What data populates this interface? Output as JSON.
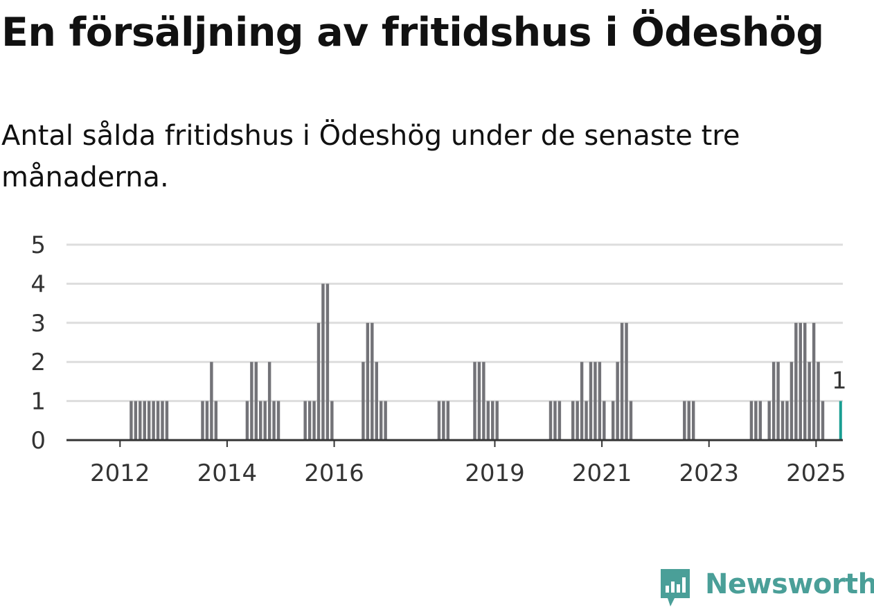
{
  "header": {
    "title": "En försäljning av fritidshus i Ödeshög",
    "subtitle": "Antal sålda fritidshus i Ödeshög under de senaste tre månaderna."
  },
  "brand": {
    "name": "Newsworthy",
    "icon": "newsworthy-logo-icon",
    "color": "#4a9f98"
  },
  "colors": {
    "bar": "#737378",
    "highlight": "#1a9e92",
    "grid": "#dddddd",
    "axis": "#333333"
  },
  "chart_data": {
    "type": "bar",
    "title": "",
    "xlabel": "",
    "ylabel": "",
    "ylim": [
      0,
      5
    ],
    "yticks": [
      0,
      1,
      2,
      3,
      4,
      5
    ],
    "xticks": [
      2012,
      2014,
      2016,
      2019,
      2021,
      2023,
      2025
    ],
    "xlim": [
      "2011-01",
      "2025-07"
    ],
    "grid": true,
    "legend": "none",
    "highlight_label": "1",
    "series": [
      {
        "values": [
          {
            "x": "2012-03",
            "y": 1
          },
          {
            "x": "2012-04",
            "y": 1
          },
          {
            "x": "2012-05",
            "y": 1
          },
          {
            "x": "2012-06",
            "y": 1
          },
          {
            "x": "2012-07",
            "y": 1
          },
          {
            "x": "2012-08",
            "y": 1
          },
          {
            "x": "2012-09",
            "y": 1
          },
          {
            "x": "2012-10",
            "y": 1
          },
          {
            "x": "2012-11",
            "y": 1
          },
          {
            "x": "2013-07",
            "y": 1
          },
          {
            "x": "2013-08",
            "y": 1
          },
          {
            "x": "2013-09",
            "y": 2
          },
          {
            "x": "2013-10",
            "y": 1
          },
          {
            "x": "2014-05",
            "y": 1
          },
          {
            "x": "2014-06",
            "y": 2
          },
          {
            "x": "2014-07",
            "y": 2
          },
          {
            "x": "2014-08",
            "y": 1
          },
          {
            "x": "2014-09",
            "y": 1
          },
          {
            "x": "2014-10",
            "y": 2
          },
          {
            "x": "2014-11",
            "y": 1
          },
          {
            "x": "2014-12",
            "y": 1
          },
          {
            "x": "2015-06",
            "y": 1
          },
          {
            "x": "2015-07",
            "y": 1
          },
          {
            "x": "2015-08",
            "y": 1
          },
          {
            "x": "2015-09",
            "y": 3
          },
          {
            "x": "2015-10",
            "y": 4
          },
          {
            "x": "2015-11",
            "y": 4
          },
          {
            "x": "2015-12",
            "y": 1
          },
          {
            "x": "2016-07",
            "y": 2
          },
          {
            "x": "2016-08",
            "y": 3
          },
          {
            "x": "2016-09",
            "y": 3
          },
          {
            "x": "2016-10",
            "y": 2
          },
          {
            "x": "2016-11",
            "y": 1
          },
          {
            "x": "2016-12",
            "y": 1
          },
          {
            "x": "2017-12",
            "y": 1
          },
          {
            "x": "2018-01",
            "y": 1
          },
          {
            "x": "2018-02",
            "y": 1
          },
          {
            "x": "2018-08",
            "y": 2
          },
          {
            "x": "2018-09",
            "y": 2
          },
          {
            "x": "2018-10",
            "y": 2
          },
          {
            "x": "2018-11",
            "y": 1
          },
          {
            "x": "2018-12",
            "y": 1
          },
          {
            "x": "2019-01",
            "y": 1
          },
          {
            "x": "2020-01",
            "y": 1
          },
          {
            "x": "2020-02",
            "y": 1
          },
          {
            "x": "2020-03",
            "y": 1
          },
          {
            "x": "2020-06",
            "y": 1
          },
          {
            "x": "2020-07",
            "y": 1
          },
          {
            "x": "2020-08",
            "y": 2
          },
          {
            "x": "2020-09",
            "y": 1
          },
          {
            "x": "2020-10",
            "y": 2
          },
          {
            "x": "2020-11",
            "y": 2
          },
          {
            "x": "2020-12",
            "y": 2
          },
          {
            "x": "2021-01",
            "y": 1
          },
          {
            "x": "2021-03",
            "y": 1
          },
          {
            "x": "2021-04",
            "y": 2
          },
          {
            "x": "2021-05",
            "y": 3
          },
          {
            "x": "2021-06",
            "y": 3
          },
          {
            "x": "2021-07",
            "y": 1
          },
          {
            "x": "2022-07",
            "y": 1
          },
          {
            "x": "2022-08",
            "y": 1
          },
          {
            "x": "2022-09",
            "y": 1
          },
          {
            "x": "2023-10",
            "y": 1
          },
          {
            "x": "2023-11",
            "y": 1
          },
          {
            "x": "2023-12",
            "y": 1
          },
          {
            "x": "2024-02",
            "y": 1
          },
          {
            "x": "2024-03",
            "y": 2
          },
          {
            "x": "2024-04",
            "y": 2
          },
          {
            "x": "2024-05",
            "y": 1
          },
          {
            "x": "2024-06",
            "y": 1
          },
          {
            "x": "2024-07",
            "y": 2
          },
          {
            "x": "2024-08",
            "y": 3
          },
          {
            "x": "2024-09",
            "y": 3
          },
          {
            "x": "2024-10",
            "y": 3
          },
          {
            "x": "2024-11",
            "y": 2
          },
          {
            "x": "2024-12",
            "y": 3
          },
          {
            "x": "2025-01",
            "y": 2
          },
          {
            "x": "2025-02",
            "y": 1
          },
          {
            "x": "2025-06",
            "y": 1,
            "highlight": true
          }
        ]
      }
    ]
  }
}
